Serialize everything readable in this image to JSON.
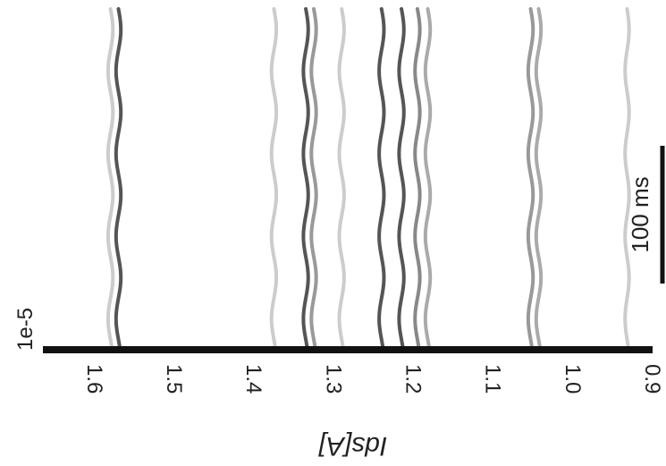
{
  "chart_data": {
    "type": "line",
    "orientation": "rotated-90",
    "xlabel": "Ids[A]",
    "axis_exponent": "1e-5",
    "xlim": [
      1.63,
      0.9
    ],
    "tick_values": [
      1.6,
      1.5,
      1.4,
      1.3,
      1.2,
      1.1,
      1.0,
      0.9
    ],
    "tick_labels": [
      "1.6",
      "1.5",
      "1.4",
      "1.3",
      "1.2",
      "1.1",
      "1.0",
      "0.9"
    ],
    "scale_bar": {
      "label": "100 ms",
      "duration_ms": 100
    },
    "oscillation_period_ms": 60,
    "series": [
      {
        "mean": 1.58,
        "amplitude": 0.003,
        "color": "#cccccc"
      },
      {
        "mean": 1.57,
        "amplitude": 0.003,
        "color": "#555555"
      },
      {
        "mean": 1.375,
        "amplitude": 0.003,
        "color": "#cccccc"
      },
      {
        "mean": 1.335,
        "amplitude": 0.003,
        "color": "#555555"
      },
      {
        "mean": 1.325,
        "amplitude": 0.003,
        "color": "#999999"
      },
      {
        "mean": 1.29,
        "amplitude": 0.003,
        "color": "#cccccc"
      },
      {
        "mean": 1.24,
        "amplitude": 0.003,
        "color": "#555555"
      },
      {
        "mean": 1.215,
        "amplitude": 0.003,
        "color": "#555555"
      },
      {
        "mean": 1.195,
        "amplitude": 0.003,
        "color": "#888888"
      },
      {
        "mean": 1.182,
        "amplitude": 0.003,
        "color": "#aaaaaa"
      },
      {
        "mean": 1.053,
        "amplitude": 0.003,
        "color": "#999999"
      },
      {
        "mean": 1.043,
        "amplitude": 0.003,
        "color": "#aaaaaa"
      },
      {
        "mean": 0.932,
        "amplitude": 0.0025,
        "color": "#cccccc"
      }
    ]
  }
}
